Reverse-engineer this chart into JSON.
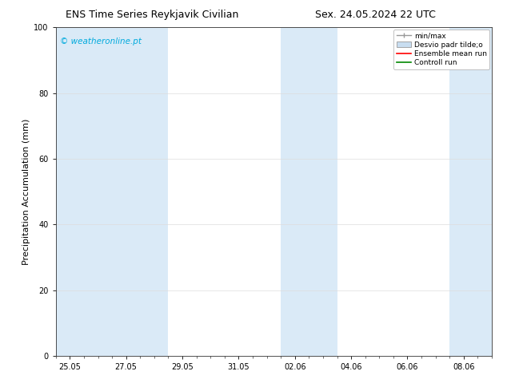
{
  "title_left": "ENS Time Series Reykjavik Civilian",
  "title_right": "Sex. 24.05.2024 22 UTC",
  "ylabel": "Precipitation Accumulation (mm)",
  "watermark": "© weatheronline.pt",
  "watermark_color": "#00aadd",
  "ylim": [
    0,
    100
  ],
  "yticks": [
    0,
    20,
    40,
    60,
    80,
    100
  ],
  "xtick_labels": [
    "25.05",
    "27.05",
    "29.05",
    "31.05",
    "02.06",
    "04.06",
    "06.06",
    "08.06"
  ],
  "shaded_color": "#daeaf7",
  "legend_items": [
    {
      "label": "min/max",
      "type": "errorbar",
      "color": "#aaaaaa"
    },
    {
      "label": "Desvio padr tilde;o",
      "type": "box",
      "color": "#c8ddf0"
    },
    {
      "label": "Ensemble mean run",
      "type": "line",
      "color": "#ff0000"
    },
    {
      "label": "Controll run",
      "type": "line",
      "color": "#008800"
    }
  ],
  "bg_color": "#ffffff",
  "title_fontsize": 9,
  "tick_fontsize": 7,
  "ylabel_fontsize": 8,
  "watermark_fontsize": 7.5,
  "legend_fontsize": 6.5
}
